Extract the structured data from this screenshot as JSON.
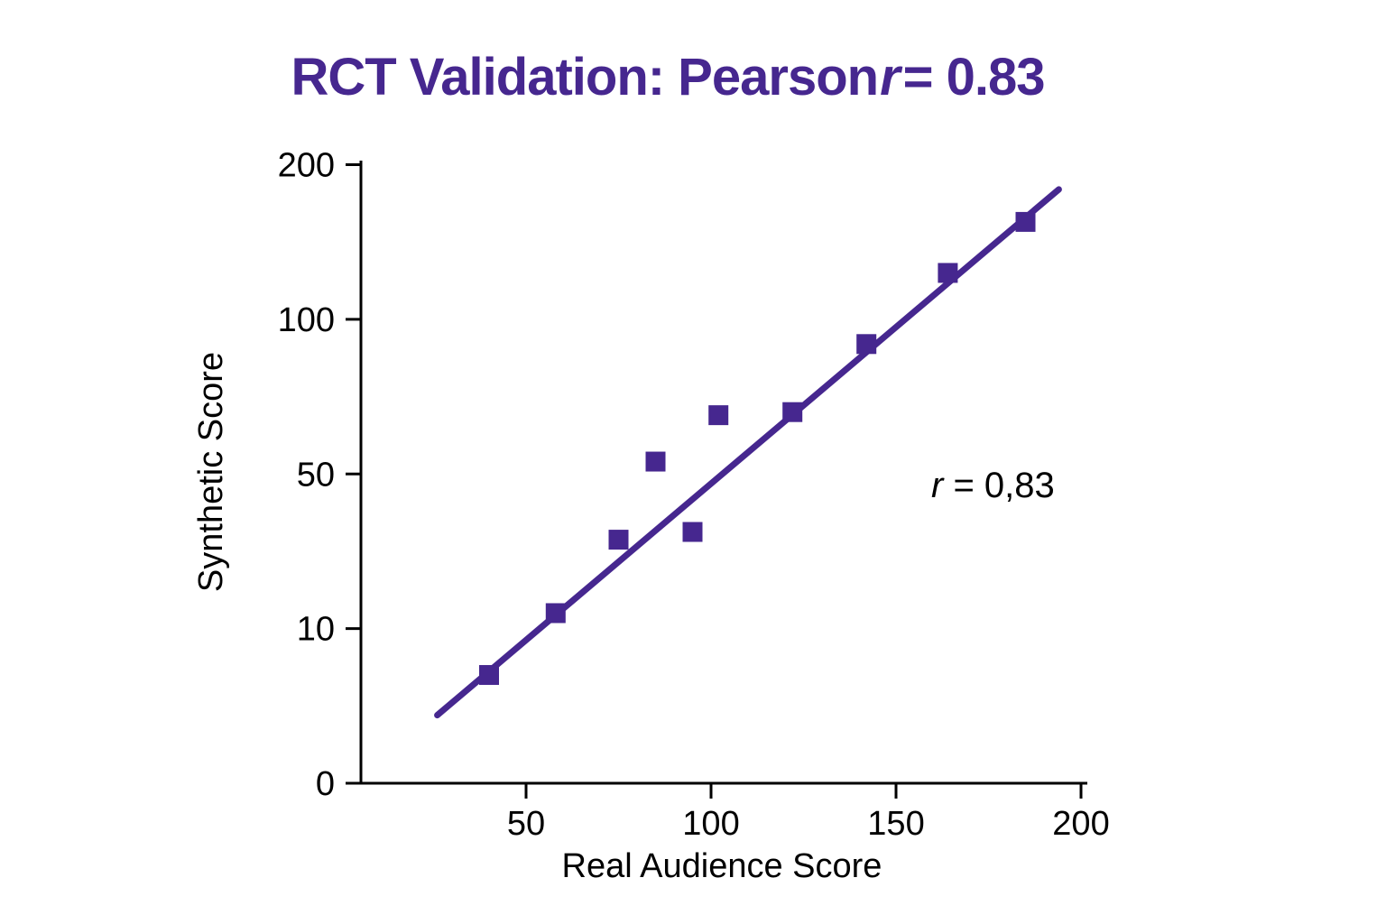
{
  "title": {
    "prefix": "RCT Validation: Pearson",
    "r_symbol": "r",
    "suffix": "= 0.83"
  },
  "colors": {
    "accent": "#46278f",
    "axis": "#000000",
    "text": "#000000"
  },
  "chart_data": {
    "type": "scatter",
    "title": "RCT Validation: Pearson r = 0.83",
    "xlabel": "Real Audience Score",
    "ylabel": "Synthetic Score",
    "x_ticks": [
      50,
      100,
      150,
      200
    ],
    "y_ticks": [
      0,
      10,
      50,
      100,
      200
    ],
    "axis_notes": {
      "x_scale": "linear",
      "y_scale": "non-linear: tick values 0,10,50,100,200 drawn at even spacing",
      "grid": "off",
      "legend": "none"
    },
    "points": [
      {
        "x": 40,
        "y": 7
      },
      {
        "x": 58,
        "y": 14
      },
      {
        "x": 75,
        "y": 33
      },
      {
        "x": 85,
        "y": 54
      },
      {
        "x": 95,
        "y": 35
      },
      {
        "x": 102,
        "y": 69
      },
      {
        "x": 122,
        "y": 70
      },
      {
        "x": 142,
        "y": 92
      },
      {
        "x": 164,
        "y": 130
      },
      {
        "x": 185,
        "y": 163
      }
    ],
    "trendline": {
      "x1": 26,
      "y1": 4.4,
      "x2": 194,
      "y2": 184
    },
    "annotation": {
      "r_symbol": "r",
      "text": " = 0,83"
    }
  }
}
